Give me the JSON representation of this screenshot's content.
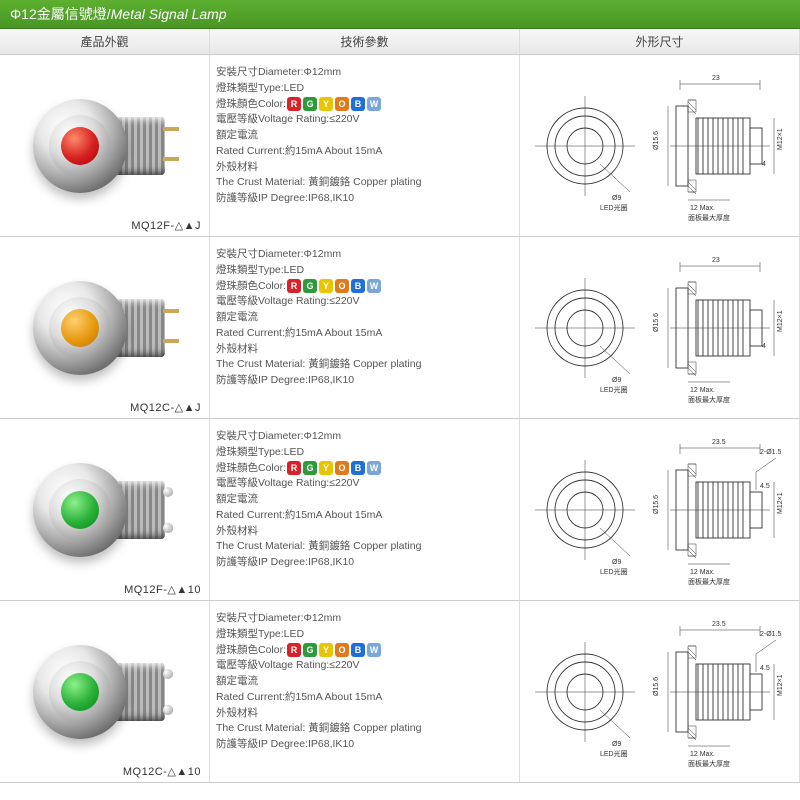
{
  "title": {
    "prefix": "Φ12金屬信號燈",
    "sep": "/",
    "en": "Metal Signal Lamp"
  },
  "header": {
    "appearance": "產品外觀",
    "specs": "技術參數",
    "dims": "外形尺寸"
  },
  "color_badges": [
    {
      "letter": "R",
      "bg": "#d8232a"
    },
    {
      "letter": "G",
      "bg": "#2e9b3b"
    },
    {
      "letter": "Y",
      "bg": "#e9c400"
    },
    {
      "letter": "O",
      "bg": "#e07a1a"
    },
    {
      "letter": "B",
      "bg": "#1e6fd8"
    },
    {
      "letter": "W",
      "bg": "#7aa7d8"
    }
  ],
  "spec_lines": {
    "diameter": "安裝尺寸Diameter:Φ12mm",
    "type": "燈珠類型Type:LED",
    "color_label": "燈珠顏色Color:",
    "voltage": "電壓等級Voltage Rating:≤220V",
    "rated_current_label": "額定電流",
    "rated_current": "Rated Current:約15mA   About 15mA",
    "crust_label": "外殼材料",
    "crust": "The Crust Material: 黃銅鍍鉻 Copper plating",
    "ip": "防護等級IP Degree:IP68,IK10"
  },
  "dim_labels": {
    "phi156": "Ø15.6",
    "m12": "M12×1",
    "phi9": "Ø9",
    "led": "LED光圈",
    "max12": "12 Max.",
    "panel": "面板最大厚度",
    "len23": "23",
    "len235": "23.5",
    "four": "4",
    "four5": "4.5",
    "screw": "2-Ø1.5"
  },
  "products": [
    {
      "model": "MQ12F-△▲J",
      "lens_color": "#d42020",
      "lens_highlight": "#ff8a6a",
      "terminal": "pins",
      "overall_len": "23",
      "tail_len": "4",
      "show_screw_dim": false
    },
    {
      "model": "MQ12C-△▲J",
      "lens_color": "#e69a10",
      "lens_highlight": "#ffd070",
      "terminal": "pins",
      "overall_len": "23",
      "tail_len": "4",
      "show_screw_dim": false
    },
    {
      "model": "MQ12F-△▲10",
      "lens_color": "#2bb03a",
      "lens_highlight": "#8ef08a",
      "terminal": "screws",
      "overall_len": "23.5",
      "tail_len": "4.5",
      "show_screw_dim": true
    },
    {
      "model": "MQ12C-△▲10",
      "lens_color": "#2bb03a",
      "lens_highlight": "#8ef08a",
      "terminal": "screws",
      "overall_len": "23.5",
      "tail_len": "4.5",
      "show_screw_dim": true
    }
  ]
}
